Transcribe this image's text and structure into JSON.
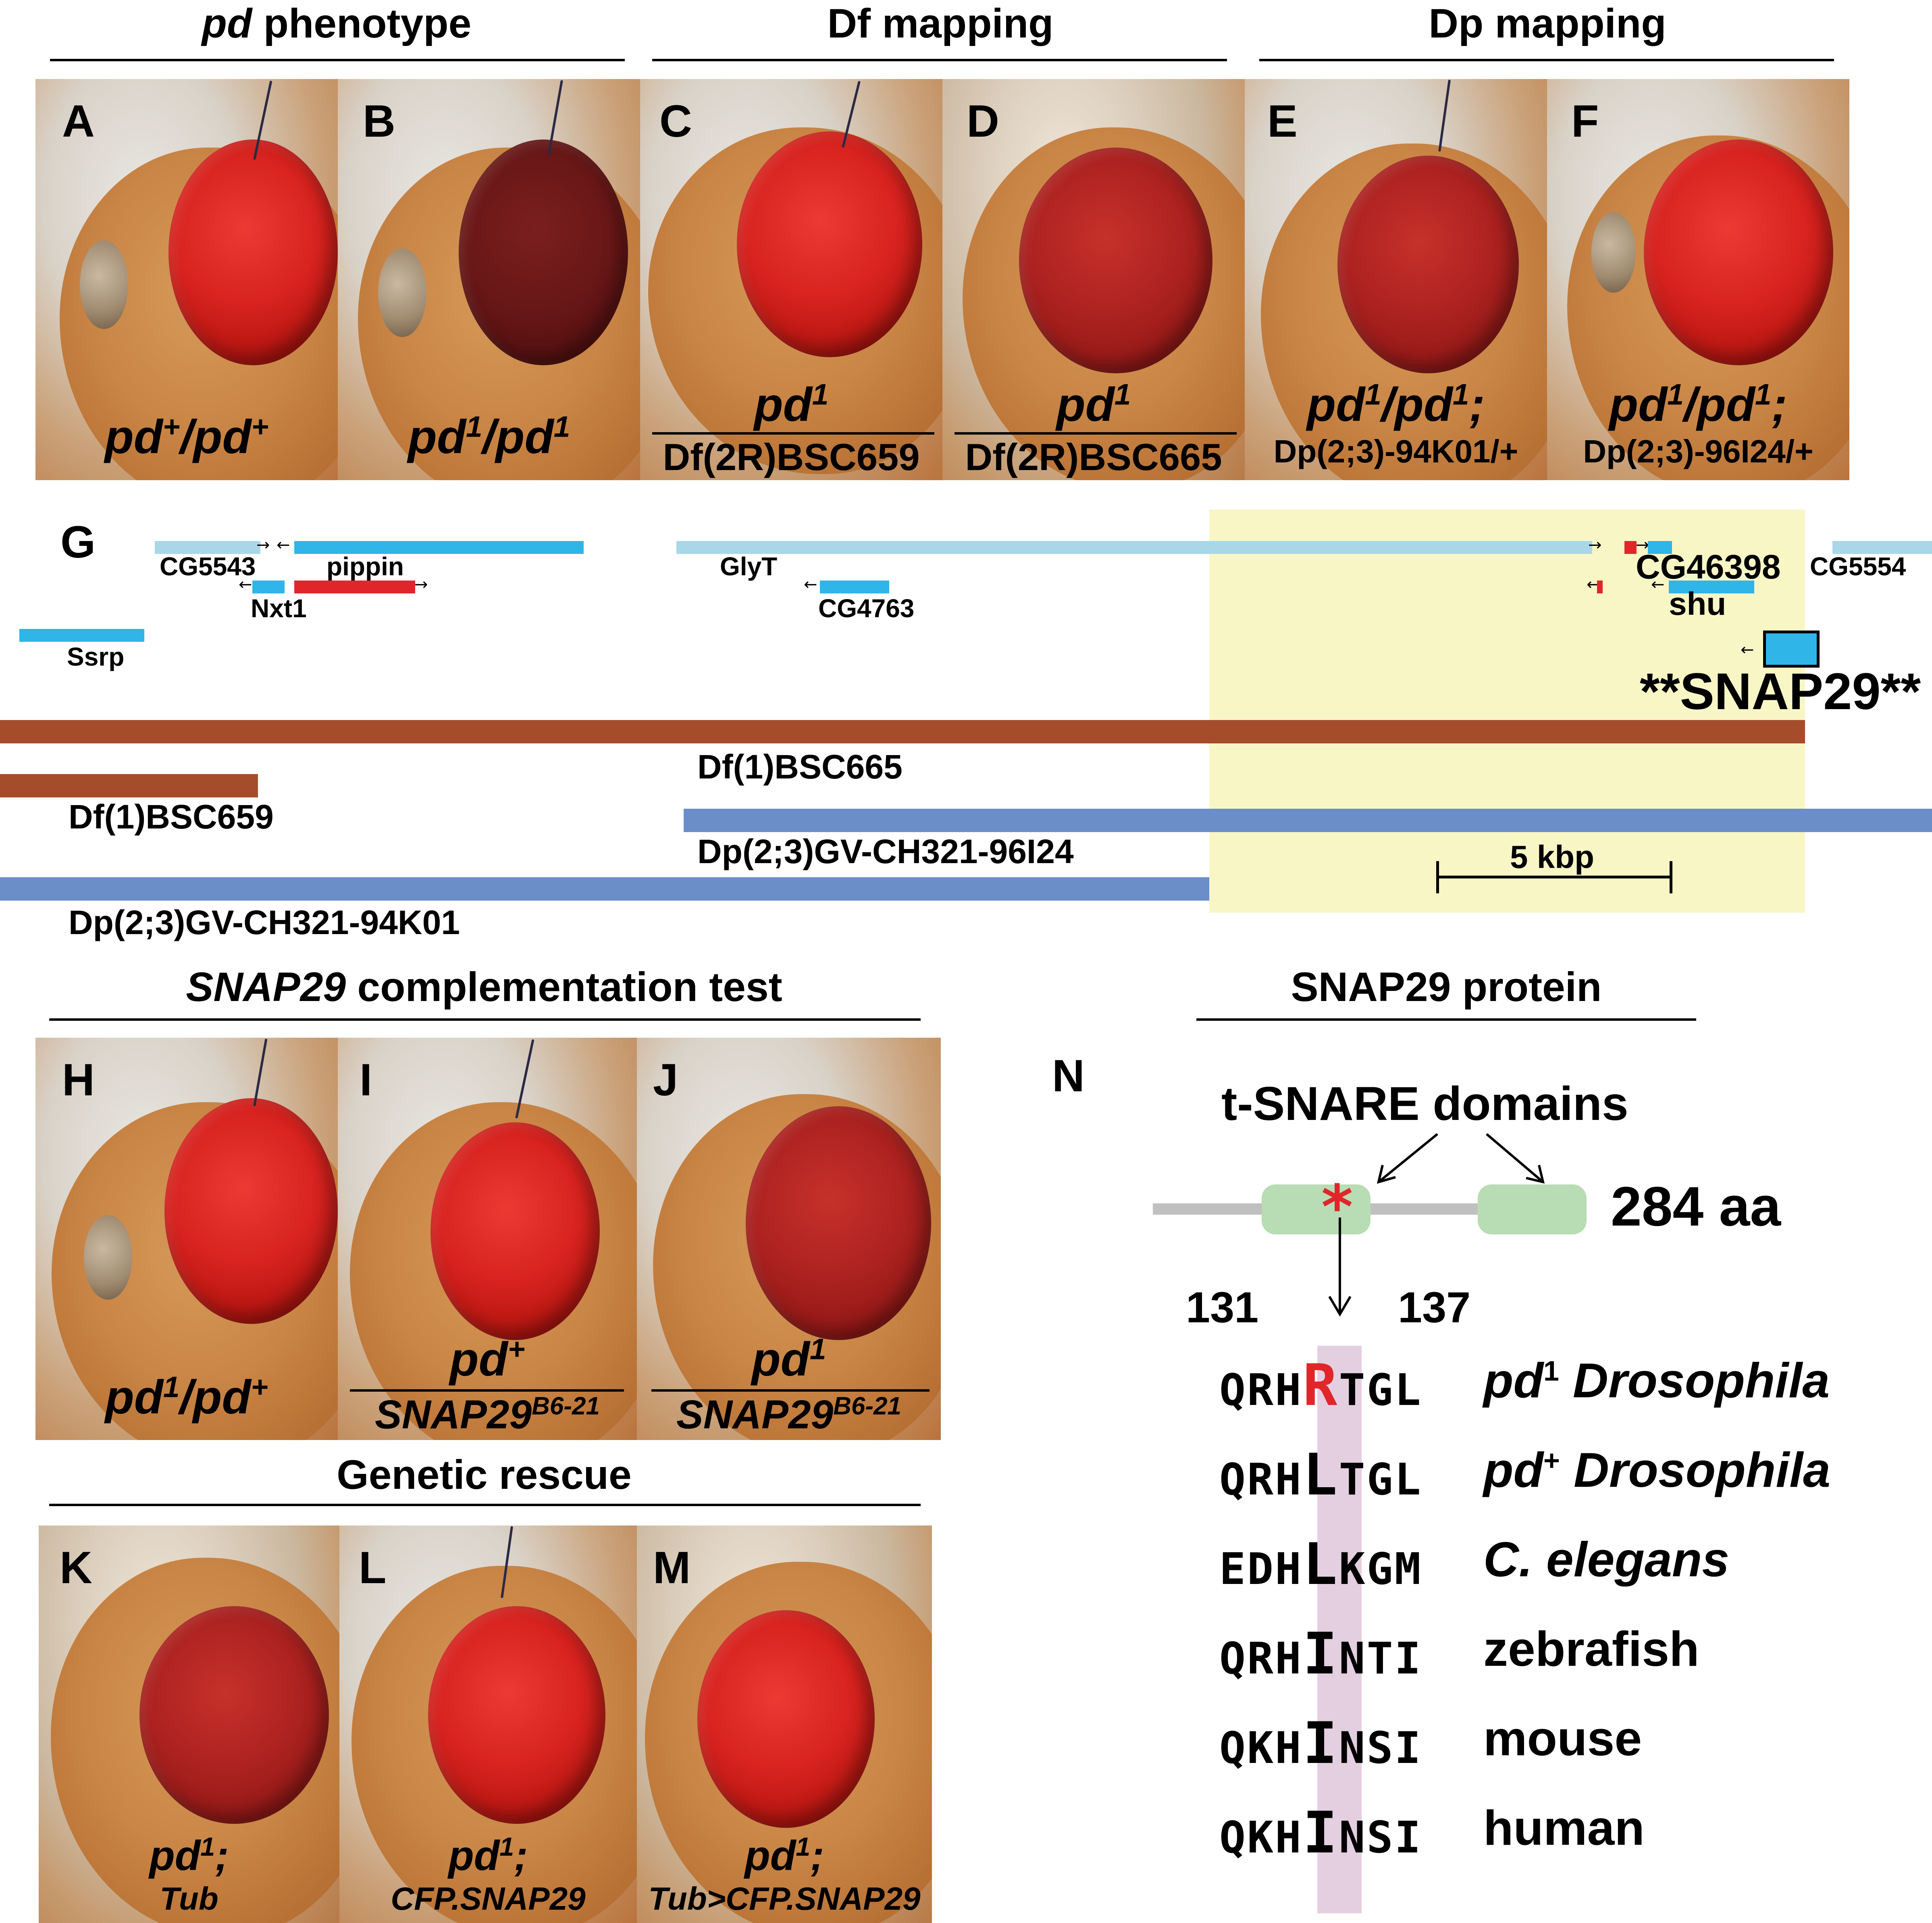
{
  "headers": {
    "pd_phenotype_italic": "pd",
    "pd_phenotype_rest": " phenotype",
    "df_mapping": "Df mapping",
    "dp_mapping": "Dp mapping",
    "snap29_comp_italic": "SNAP29",
    "snap29_comp_rest": " complementation test",
    "genetic_rescue": "Genetic rescue",
    "snap29_protein": "SNAP29 protein"
  },
  "panels": {
    "A": {
      "letter": "A",
      "g1": "pd",
      "s1": "+",
      "g2": "/pd",
      "s2": "+"
    },
    "B": {
      "letter": "B",
      "g1": "pd",
      "s1": "1",
      "g2": "/pd",
      "s2": "1"
    },
    "C": {
      "letter": "C",
      "top": "pd",
      "top_sup": "1",
      "bottom": "Df(2R)BSC659"
    },
    "D": {
      "letter": "D",
      "top": "pd",
      "top_sup": "1",
      "bottom": "Df(2R)BSC665"
    },
    "E": {
      "letter": "E",
      "g1": "pd",
      "s1": "1",
      "g2": "/pd",
      "s2": "1",
      "g3": ";",
      "line2": "Dp(2;3)-94K01/+"
    },
    "F": {
      "letter": "F",
      "g1": "pd",
      "s1": "1",
      "g2": "/pd",
      "s2": "1",
      "g3": ";",
      "line2": "Dp(2;3)-96I24/+"
    },
    "H": {
      "letter": "H",
      "g1": "pd",
      "s1": "1",
      "g2": "/pd",
      "s2": "+"
    },
    "I": {
      "letter": "I",
      "top": "pd",
      "top_sup": "+",
      "bottom": "SNAP29",
      "bottom_sup": "B6-21"
    },
    "J": {
      "letter": "J",
      "top": "pd",
      "top_sup": "1",
      "bottom": "SNAP29",
      "bottom_sup": "B6-21"
    },
    "K": {
      "letter": "K",
      "g1": "pd",
      "s1": "1",
      "g2": ";",
      "line2": "Tub"
    },
    "L": {
      "letter": "L",
      "g1": "pd",
      "s1": "1",
      "g2": ";",
      "line2": "CFP.SNAP29"
    },
    "M": {
      "letter": "M",
      "g1": "pd",
      "s1": "1",
      "g2": ";",
      "line2": "Tub>CFP.SNAP29"
    }
  },
  "panel_G": {
    "letter": "G",
    "genes": {
      "cg5543": "CG5543",
      "pippin": "pippin",
      "nxt1": "Nxt1",
      "ssrp": "Ssrp",
      "glyt": "GlyT",
      "cg4763": "CG4763",
      "cg46398": "CG46398",
      "shu": "shu",
      "cg5554": "CG5554",
      "snap29": "**SNAP29**"
    },
    "regions": {
      "df665": "Df(1)BSC665",
      "df659": "Df(1)BSC659",
      "dp96i24": "Dp(2;3)GV-CH321-96I24",
      "dp94k01": "Dp(2;3)GV-CH321-94K01"
    },
    "scale": "5 kbp",
    "colors": {
      "light_blue": "#a9d7e8",
      "mid_blue": "#2fb5e8",
      "red": "#e0262b",
      "df_brown": "#a54d2b",
      "dp_blue": "#6b8dc8",
      "highlight": "#f9f6c6"
    }
  },
  "panel_N": {
    "letter": "N",
    "domain_label": "t-SNARE domains",
    "length": "284 aa",
    "pos_start": "131",
    "pos_end": "137",
    "star": "*",
    "colors": {
      "backbone": "#c0c0c0",
      "domain": "#b8dcb4",
      "highlight_column": "#e4cfe0",
      "mutant": "#e0262b"
    },
    "rows": [
      {
        "pre": "QRH",
        "res": "R",
        "post": "TGL",
        "g": "pd",
        "sup": "1",
        "name": " Drosophila",
        "italic": true,
        "mutant": true
      },
      {
        "pre": "QRH",
        "res": "L",
        "post": "TGL",
        "g": "pd",
        "sup": "+",
        "name": " Drosophila",
        "italic": true,
        "mutant": false
      },
      {
        "pre": "EDH",
        "res": "L",
        "post": "KGM",
        "g": "",
        "sup": "",
        "name": "C. elegans",
        "italic": true,
        "mutant": false
      },
      {
        "pre": "QRH",
        "res": "I",
        "post": "NTI",
        "g": "",
        "sup": "",
        "name": "zebrafish",
        "italic": false,
        "mutant": false
      },
      {
        "pre": "QKH",
        "res": "I",
        "post": "NSI",
        "g": "",
        "sup": "",
        "name": "mouse",
        "italic": false,
        "mutant": false
      },
      {
        "pre": "QKH",
        "res": "I",
        "post": "NSI",
        "g": "",
        "sup": "",
        "name": "human",
        "italic": false,
        "mutant": false
      }
    ]
  }
}
